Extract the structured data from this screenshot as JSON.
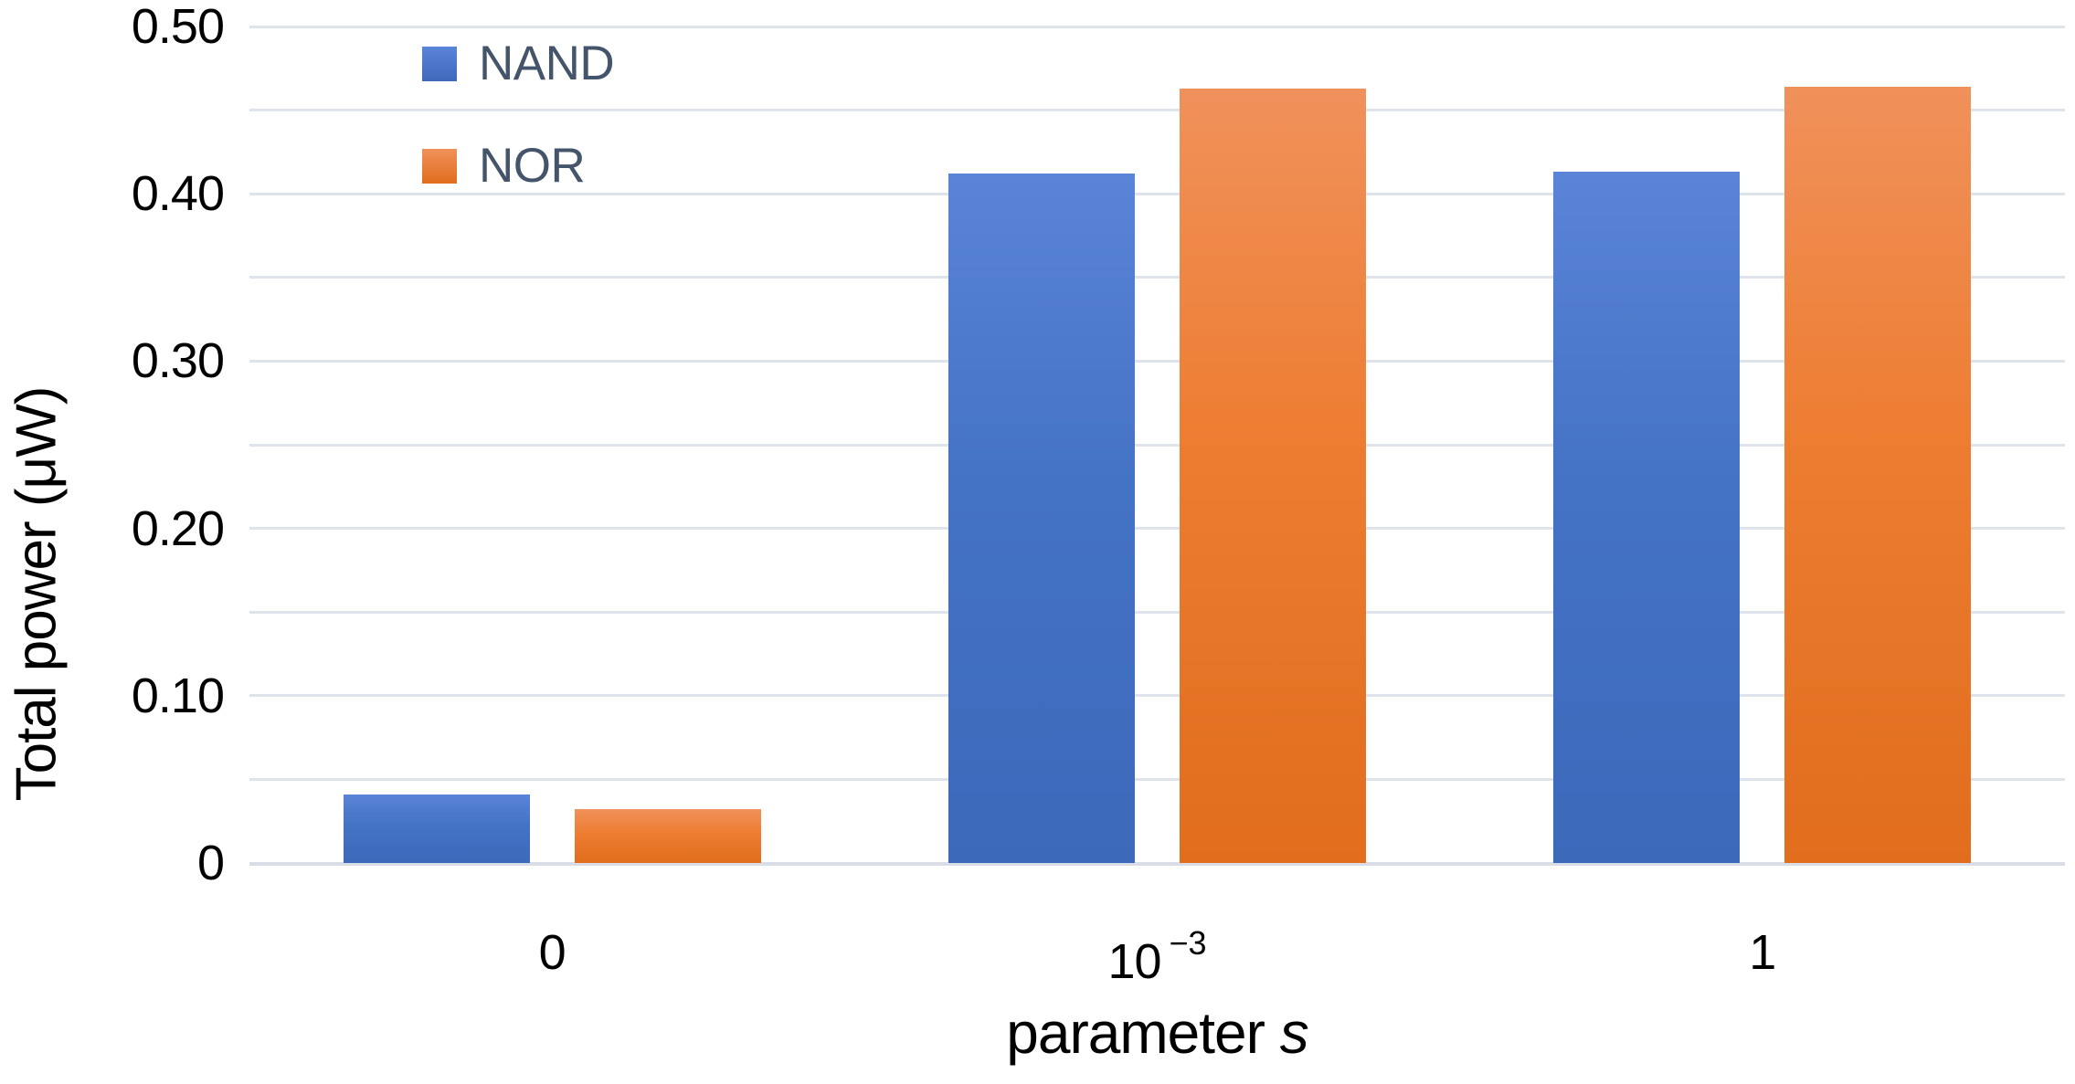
{
  "chart_data": {
    "type": "bar",
    "title": "",
    "ylabel": "Total power (μW)",
    "xlabel_parts": {
      "text": "parameter ",
      "italic": "s"
    },
    "categories": [
      {
        "text": "0"
      },
      {
        "text": "10",
        "sup": "−3"
      },
      {
        "text": "1"
      }
    ],
    "series": [
      {
        "name": "NAND",
        "color": "#4472C4",
        "color_top": "#5a84d8",
        "color_bottom": "#3d69bb",
        "values": [
          0.041,
          0.412,
          0.413
        ]
      },
      {
        "name": "NOR",
        "color": "#ED7D31",
        "color_top": "#f0915b",
        "color_bottom": "#e16d1d",
        "values": [
          0.032,
          0.463,
          0.464
        ]
      }
    ],
    "ylim": [
      0,
      0.5
    ],
    "ytick_step_minor": 0.05,
    "ytick_labels": [
      {
        "v": 0.5,
        "label": "0.50"
      },
      {
        "v": 0.4,
        "label": "0.40"
      },
      {
        "v": 0.3,
        "label": "0.30"
      },
      {
        "v": 0.2,
        "label": "0.20"
      },
      {
        "v": 0.1,
        "label": "0.10"
      },
      {
        "v": 0.0,
        "label": "0"
      }
    ],
    "grid": "horizontal-minor",
    "legend_position": "top-left-inside",
    "colors": {
      "legend_text": "#44546A",
      "axis_text": "#000000",
      "gridline": "#dfe3ec"
    }
  }
}
